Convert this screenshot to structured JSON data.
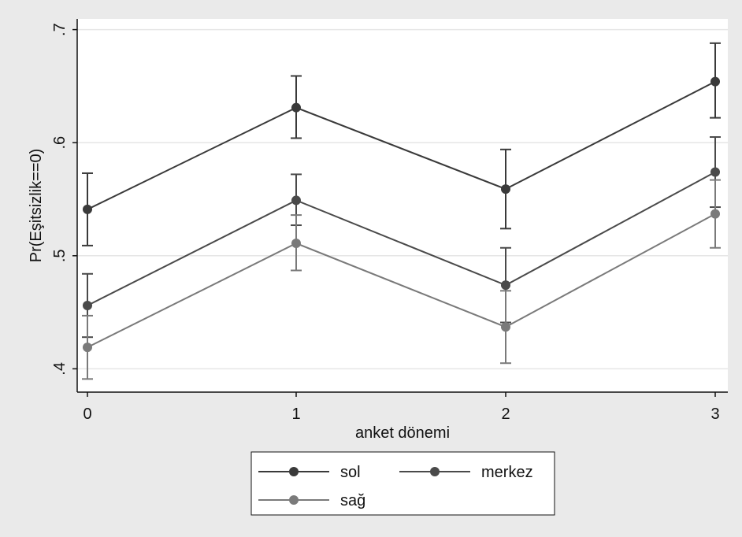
{
  "chart_data": {
    "type": "line",
    "title": "",
    "xlabel": "anket dönemi",
    "ylabel": "Pr(Eşitsizlik==0)",
    "x": [
      0,
      1,
      2,
      3
    ],
    "x_ticks": [
      "0",
      "1",
      "2",
      "3"
    ],
    "y_ticks": [
      ".4",
      ".5",
      ".6",
      ".7"
    ],
    "y_tick_values": [
      0.4,
      0.5,
      0.6,
      0.7
    ],
    "xlim": [
      0,
      3
    ],
    "ylim": [
      0.381,
      0.72
    ],
    "grid": true,
    "legend_position": "bottom",
    "series": [
      {
        "name": "sol",
        "color": "#3a3a3a",
        "values": [
          0.541,
          0.631,
          0.559,
          0.654
        ],
        "ci_low": [
          0.509,
          0.604,
          0.524,
          0.622
        ],
        "ci_high": [
          0.573,
          0.659,
          0.594,
          0.688
        ]
      },
      {
        "name": "merkez",
        "color": "#4a4a4a",
        "values": [
          0.456,
          0.549,
          0.474,
          0.574
        ],
        "ci_low": [
          0.428,
          0.527,
          0.441,
          0.543
        ],
        "ci_high": [
          0.484,
          0.572,
          0.507,
          0.605
        ]
      },
      {
        "name": "sağ",
        "color": "#7a7a7a",
        "values": [
          0.419,
          0.511,
          0.437,
          0.537
        ],
        "ci_low": [
          0.391,
          0.487,
          0.405,
          0.507
        ],
        "ci_high": [
          0.447,
          0.536,
          0.469,
          0.567
        ]
      }
    ]
  }
}
